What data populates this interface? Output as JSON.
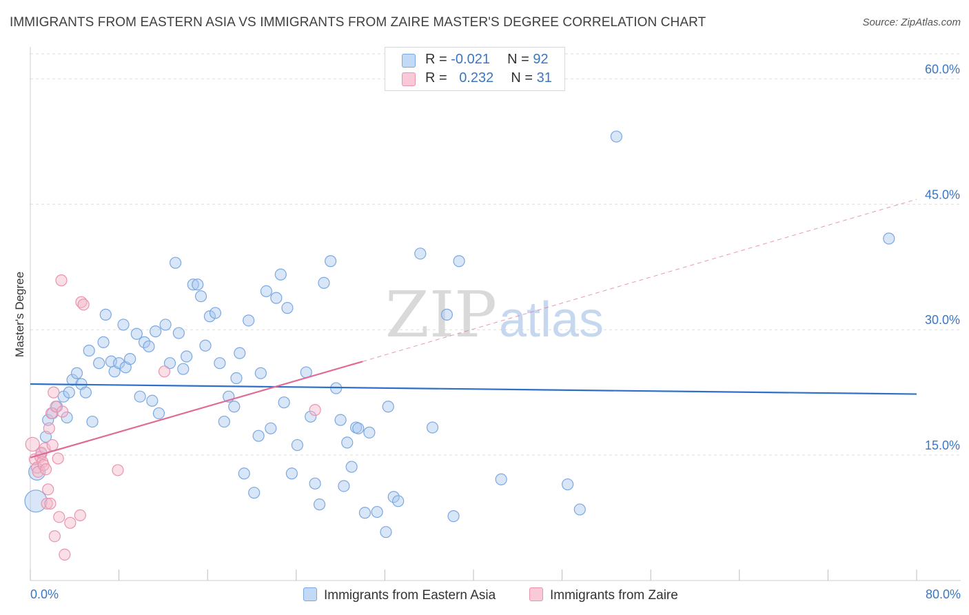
{
  "title": "IMMIGRANTS FROM EASTERN ASIA VS IMMIGRANTS FROM ZAIRE MASTER'S DEGREE CORRELATION CHART",
  "source": "Source: ZipAtlas.com",
  "watermark": {
    "zip": "ZIP",
    "atlas": "atlas"
  },
  "legend": {
    "rows": [
      {
        "r_label": "R = ",
        "r_value": "-0.021",
        "n_label": "N = ",
        "n_value": "92"
      },
      {
        "r_label": "R = ",
        "r_value": "0.232",
        "n_label": "N = ",
        "n_value": "31"
      }
    ]
  },
  "bottom_legend": {
    "series1": "Immigrants from Eastern Asia",
    "series2": "Immigrants from Zaire"
  },
  "colors": {
    "blue_fill": "#a9c8f0",
    "blue_stroke": "#7aa8e0",
    "blue_line": "#2e6fc9",
    "pink_fill": "#f5b8ca",
    "pink_stroke": "#e993ad",
    "pink_line": "#e06a95",
    "axis_text": "#3a76c4",
    "grid": "#dddddd"
  },
  "chart_data": {
    "type": "scatter",
    "title": "IMMIGRANTS FROM EASTERN ASIA VS IMMIGRANTS FROM ZAIRE MASTER'S DEGREE CORRELATION CHART",
    "xlabel": "",
    "ylabel": "Master's Degree",
    "xlim": [
      0,
      80
    ],
    "ylim": [
      0,
      63
    ],
    "x_tick_labels": [
      "0.0%",
      "80.0%"
    ],
    "y_ticks": [
      15,
      30,
      45,
      60
    ],
    "y_tick_labels": [
      "15.0%",
      "30.0%",
      "45.0%",
      "60.0%"
    ],
    "series": [
      {
        "name": "Immigrants from Eastern Asia",
        "r": -0.021,
        "n": 92,
        "trend": {
          "x0": 0,
          "y0": 23.5,
          "x1": 80,
          "y1": 22.3
        },
        "points": [
          [
            0.5,
            9.5
          ],
          [
            0.6,
            13.0
          ],
          [
            1.0,
            15.2
          ],
          [
            1.4,
            17.2
          ],
          [
            1.6,
            19.2
          ],
          [
            2.0,
            20.0
          ],
          [
            2.4,
            20.8
          ],
          [
            3.0,
            22.0
          ],
          [
            3.3,
            19.5
          ],
          [
            3.5,
            22.5
          ],
          [
            3.8,
            24.0
          ],
          [
            4.2,
            24.8
          ],
          [
            4.6,
            23.5
          ],
          [
            5.0,
            22.5
          ],
          [
            5.3,
            27.5
          ],
          [
            5.6,
            19.0
          ],
          [
            6.2,
            26.0
          ],
          [
            6.6,
            28.5
          ],
          [
            6.8,
            31.8
          ],
          [
            7.3,
            26.2
          ],
          [
            7.6,
            25.0
          ],
          [
            8.0,
            26.0
          ],
          [
            8.4,
            30.6
          ],
          [
            8.6,
            25.5
          ],
          [
            9.0,
            26.5
          ],
          [
            9.6,
            29.5
          ],
          [
            9.9,
            22.0
          ],
          [
            10.3,
            28.5
          ],
          [
            10.7,
            28.0
          ],
          [
            11.0,
            21.5
          ],
          [
            11.3,
            29.8
          ],
          [
            11.6,
            20.0
          ],
          [
            12.2,
            30.6
          ],
          [
            12.6,
            26.0
          ],
          [
            13.1,
            38.0
          ],
          [
            13.4,
            29.6
          ],
          [
            13.8,
            25.3
          ],
          [
            14.1,
            26.8
          ],
          [
            14.7,
            35.4
          ],
          [
            15.1,
            35.4
          ],
          [
            15.4,
            34.0
          ],
          [
            15.8,
            28.1
          ],
          [
            16.2,
            31.6
          ],
          [
            16.7,
            32.0
          ],
          [
            17.1,
            26.0
          ],
          [
            17.5,
            19.0
          ],
          [
            17.9,
            22.0
          ],
          [
            18.4,
            20.8
          ],
          [
            18.6,
            24.2
          ],
          [
            18.9,
            27.2
          ],
          [
            19.3,
            12.8
          ],
          [
            19.7,
            31.1
          ],
          [
            20.2,
            10.5
          ],
          [
            20.6,
            17.3
          ],
          [
            20.8,
            24.8
          ],
          [
            21.3,
            34.6
          ],
          [
            21.7,
            18.2
          ],
          [
            22.2,
            33.8
          ],
          [
            22.6,
            36.6
          ],
          [
            22.9,
            21.3
          ],
          [
            23.2,
            32.6
          ],
          [
            23.6,
            12.8
          ],
          [
            24.1,
            16.2
          ],
          [
            24.9,
            24.9
          ],
          [
            25.3,
            19.6
          ],
          [
            25.7,
            11.6
          ],
          [
            26.1,
            9.1
          ],
          [
            26.5,
            35.6
          ],
          [
            27.1,
            38.2
          ],
          [
            27.6,
            23.0
          ],
          [
            28.0,
            19.2
          ],
          [
            28.3,
            11.3
          ],
          [
            28.6,
            16.5
          ],
          [
            29.0,
            13.6
          ],
          [
            29.4,
            18.3
          ],
          [
            29.6,
            18.2
          ],
          [
            30.2,
            8.1
          ],
          [
            30.6,
            17.7
          ],
          [
            31.3,
            8.2
          ],
          [
            32.3,
            20.8
          ],
          [
            32.1,
            5.8
          ],
          [
            32.8,
            10.0
          ],
          [
            33.2,
            9.5
          ],
          [
            35.2,
            39.1
          ],
          [
            36.3,
            18.3
          ],
          [
            37.6,
            31.8
          ],
          [
            38.2,
            7.7
          ],
          [
            38.7,
            38.2
          ],
          [
            42.5,
            12.1
          ],
          [
            48.5,
            11.5
          ],
          [
            49.6,
            8.5
          ],
          [
            52.9,
            53.1
          ],
          [
            77.5,
            40.9
          ]
        ]
      },
      {
        "name": "Immigrants from Zaire",
        "r": 0.232,
        "n": 31,
        "trend": {
          "x0": 0,
          "y0": 14.7,
          "x1": 30,
          "y1": 26.2,
          "dash_x1": 80,
          "dash_y1": 45.6
        },
        "points": [
          [
            0.2,
            16.3
          ],
          [
            0.4,
            14.5
          ],
          [
            0.6,
            13.5
          ],
          [
            0.7,
            13.0
          ],
          [
            0.9,
            14.8
          ],
          [
            1.0,
            15.3
          ],
          [
            1.1,
            14.2
          ],
          [
            1.2,
            13.8
          ],
          [
            1.3,
            15.8
          ],
          [
            1.4,
            13.3
          ],
          [
            1.5,
            9.2
          ],
          [
            1.6,
            10.9
          ],
          [
            1.7,
            18.2
          ],
          [
            1.8,
            9.2
          ],
          [
            1.9,
            20.0
          ],
          [
            2.0,
            16.2
          ],
          [
            2.1,
            22.5
          ],
          [
            2.2,
            5.3
          ],
          [
            2.3,
            20.8
          ],
          [
            2.5,
            14.6
          ],
          [
            2.6,
            7.6
          ],
          [
            2.8,
            35.9
          ],
          [
            2.9,
            20.2
          ],
          [
            3.1,
            3.1
          ],
          [
            3.6,
            6.9
          ],
          [
            4.5,
            7.8
          ],
          [
            4.6,
            33.3
          ],
          [
            4.8,
            33.0
          ],
          [
            7.9,
            13.2
          ],
          [
            12.1,
            25.0
          ],
          [
            25.7,
            20.4
          ]
        ]
      }
    ]
  }
}
